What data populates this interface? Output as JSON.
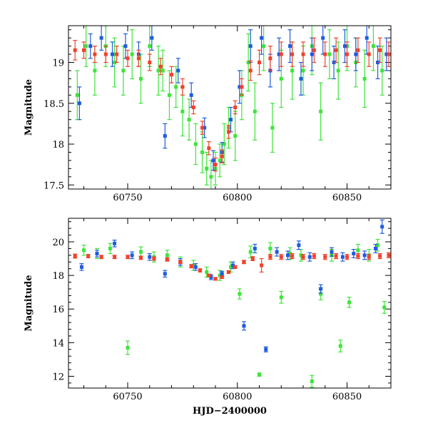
{
  "colors": {
    "red": "#f4402b",
    "green": "#3ee43a",
    "blue": "#1f5be2"
  },
  "chart_data": [
    {
      "type": "scatter",
      "title": "",
      "xlabel": "",
      "ylabel": "Magnitude",
      "xlim": [
        60723,
        60870
      ],
      "ylim": [
        19.45,
        17.45
      ],
      "y_inverted": true,
      "xticks": [
        60750,
        60800,
        60850
      ],
      "xtick_labels": [
        "60750",
        "60800",
        "60850"
      ],
      "yticks": [
        17.5,
        18,
        18.5,
        19
      ],
      "ytick_labels": [
        "17.5",
        "18",
        "18.5",
        "19"
      ],
      "error_bars": true,
      "series": [
        {
          "color": "green",
          "x": [
            60727,
            60731,
            60735,
            60740,
            60744,
            60748,
            60752,
            60756,
            60760,
            60764,
            60766,
            60769,
            60772,
            60775,
            60778,
            60781,
            60784,
            60786,
            60788,
            60790,
            60792,
            60794,
            60796,
            60799,
            60802,
            60805,
            60808,
            60812,
            60816,
            60820,
            60825,
            60830,
            60834,
            60838,
            60842,
            60846,
            60850,
            60854,
            60858,
            60862,
            60866
          ],
          "y": [
            18.6,
            19.2,
            18.9,
            19.2,
            19.0,
            18.9,
            19.1,
            18.8,
            19.2,
            18.9,
            18.9,
            18.6,
            18.7,
            18.4,
            18.3,
            18.0,
            17.9,
            17.7,
            17.6,
            17.7,
            17.8,
            18.0,
            18.2,
            18.1,
            18.6,
            19.0,
            18.4,
            19.2,
            18.2,
            18.8,
            18.9,
            18.9,
            19.2,
            18.4,
            19.1,
            18.9,
            19.2,
            19.0,
            18.8,
            19.2,
            18.9
          ],
          "err": [
            0.3,
            0.25,
            0.3,
            0.25,
            0.3,
            0.3,
            0.3,
            0.3,
            0.25,
            0.3,
            0.25,
            0.3,
            0.25,
            0.3,
            0.25,
            0.25,
            0.25,
            0.2,
            0.2,
            0.2,
            0.2,
            0.25,
            0.25,
            0.3,
            0.3,
            0.35,
            0.35,
            0.3,
            0.3,
            0.35,
            0.35,
            0.3,
            0.35,
            0.35,
            0.3,
            0.35,
            0.3,
            0.3,
            0.35,
            0.3,
            0.3
          ]
        },
        {
          "color": "blue",
          "x": [
            60728,
            60733,
            60738,
            60743,
            60749,
            60755,
            60761,
            60767,
            60773,
            60779,
            60785,
            60789,
            60793,
            60797,
            60801,
            60806,
            60811,
            60815,
            60819,
            60824,
            60829,
            60834,
            60839,
            60844,
            60849,
            60854,
            60859,
            60864,
            60868
          ],
          "y": [
            18.5,
            19.2,
            19.3,
            19.1,
            19.2,
            19.1,
            19.3,
            18.1,
            18.9,
            18.6,
            18.2,
            17.8,
            17.9,
            18.3,
            18.7,
            19.2,
            19.3,
            18.9,
            19.1,
            19.2,
            18.8,
            19.1,
            19.3,
            19.0,
            19.2,
            19.1,
            19.3,
            19.0,
            19.1
          ],
          "err": [
            0.2,
            0.15,
            0.15,
            0.15,
            0.15,
            0.15,
            0.15,
            0.15,
            0.15,
            0.15,
            0.12,
            0.12,
            0.12,
            0.15,
            0.2,
            0.2,
            0.2,
            0.2,
            0.2,
            0.2,
            0.2,
            0.2,
            0.2,
            0.2,
            0.2,
            0.2,
            0.2,
            0.2,
            0.2
          ]
        },
        {
          "color": "red",
          "x": [
            60726,
            60730,
            60735,
            60740,
            60745,
            60750,
            60755,
            60760,
            60765,
            60770,
            60775,
            60780,
            60784,
            60787,
            60790,
            60793,
            60796,
            60799,
            60802,
            60806,
            60810,
            60815,
            60820,
            60825,
            60830,
            60835,
            60840,
            60845,
            60850,
            60855,
            60860,
            60865,
            60869
          ],
          "y": [
            19.15,
            19.15,
            19.1,
            19.1,
            19.1,
            19.05,
            19.05,
            19.0,
            18.95,
            18.85,
            18.7,
            18.45,
            18.2,
            17.95,
            17.75,
            17.85,
            18.15,
            18.45,
            18.7,
            18.9,
            19.0,
            19.05,
            19.1,
            19.1,
            19.1,
            19.15,
            19.1,
            19.15,
            19.1,
            19.15,
            19.1,
            19.15,
            19.1
          ],
          "err": [
            0.12,
            0.1,
            0.1,
            0.1,
            0.1,
            0.1,
            0.1,
            0.1,
            0.1,
            0.1,
            0.1,
            0.08,
            0.08,
            0.08,
            0.08,
            0.08,
            0.08,
            0.08,
            0.1,
            0.12,
            0.15,
            0.15,
            0.15,
            0.15,
            0.15,
            0.15,
            0.15,
            0.15,
            0.15,
            0.15,
            0.15,
            0.15,
            0.15
          ]
        }
      ]
    },
    {
      "type": "scatter",
      "title": "",
      "xlabel": "HJD−2400000",
      "ylabel": "Magnitude",
      "xlim": [
        60723,
        60870
      ],
      "ylim": [
        21.4,
        11.3
      ],
      "y_inverted": true,
      "xticks": [
        60750,
        60800,
        60850
      ],
      "xtick_labels": [
        "60750",
        "60800",
        "60850"
      ],
      "yticks": [
        12,
        14,
        16,
        18,
        20
      ],
      "ytick_labels": [
        "12",
        "14",
        "16",
        "18",
        "20"
      ],
      "error_bars": true,
      "series": [
        {
          "color": "green",
          "x": [
            60730,
            60736,
            60742,
            60750,
            60756,
            60762,
            60768,
            60774,
            60780,
            60786,
            60792,
            60797,
            60801,
            60806,
            60810,
            60815,
            60820,
            60824,
            60829,
            60834,
            60838,
            60843,
            60847,
            60851,
            60855,
            60860,
            60864,
            60867
          ],
          "y": [
            19.5,
            19.3,
            19.6,
            13.7,
            19.4,
            19.1,
            19.2,
            18.8,
            18.6,
            18.2,
            18.0,
            18.5,
            16.9,
            19.4,
            12.1,
            19.6,
            16.7,
            19.3,
            19.2,
            11.7,
            16.9,
            19.2,
            13.8,
            16.4,
            19.5,
            19.2,
            19.8,
            16.1
          ],
          "err": [
            0.3,
            0.3,
            0.3,
            0.4,
            0.3,
            0.3,
            0.3,
            0.3,
            0.3,
            0.3,
            0.3,
            0.3,
            0.3,
            0.35,
            0.1,
            0.35,
            0.35,
            0.35,
            0.35,
            0.35,
            0.35,
            0.35,
            0.35,
            0.3,
            0.35,
            0.35,
            0.35,
            0.35
          ]
        },
        {
          "color": "blue",
          "x": [
            60729,
            60736,
            60744,
            60752,
            60760,
            60767,
            60774,
            60781,
            60788,
            60793,
            60798,
            60803,
            60808,
            60813,
            60818,
            60823,
            60828,
            60833,
            60838,
            60843,
            60848,
            60853,
            60858,
            60863,
            60866
          ],
          "y": [
            18.5,
            19.3,
            19.9,
            19.2,
            19.1,
            18.1,
            18.8,
            18.5,
            17.9,
            18.1,
            18.6,
            15.0,
            19.6,
            13.6,
            19.4,
            19.2,
            19.8,
            19.1,
            17.2,
            19.4,
            19.1,
            19.3,
            19.2,
            19.6,
            20.9
          ],
          "err": [
            0.2,
            0.2,
            0.2,
            0.2,
            0.2,
            0.2,
            0.2,
            0.2,
            0.15,
            0.15,
            0.2,
            0.25,
            0.25,
            0.15,
            0.25,
            0.25,
            0.25,
            0.25,
            0.25,
            0.25,
            0.25,
            0.25,
            0.25,
            0.25,
            0.4
          ]
        },
        {
          "color": "red",
          "x": [
            60726,
            60732,
            60738,
            60744,
            60750,
            60756,
            60762,
            60768,
            60774,
            60779,
            60783,
            60787,
            60790,
            60793,
            60796,
            60799,
            60803,
            60807,
            60811,
            60815,
            60820,
            60825,
            60830,
            60835,
            60840,
            60845,
            60850,
            60855,
            60860,
            60865,
            60869
          ],
          "y": [
            19.15,
            19.15,
            19.1,
            19.1,
            19.1,
            19.05,
            19.0,
            18.95,
            18.8,
            18.55,
            18.3,
            18.0,
            17.8,
            17.9,
            18.2,
            18.5,
            18.8,
            19.0,
            18.6,
            19.1,
            19.1,
            19.15,
            19.1,
            19.15,
            19.1,
            19.15,
            19.1,
            19.15,
            19.1,
            19.15,
            19.2
          ],
          "err": [
            0.12,
            0.1,
            0.1,
            0.1,
            0.1,
            0.1,
            0.1,
            0.1,
            0.1,
            0.1,
            0.1,
            0.08,
            0.08,
            0.08,
            0.08,
            0.08,
            0.1,
            0.12,
            0.4,
            0.15,
            0.15,
            0.15,
            0.15,
            0.15,
            0.15,
            0.15,
            0.15,
            0.15,
            0.15,
            0.15,
            0.15
          ]
        }
      ]
    }
  ]
}
